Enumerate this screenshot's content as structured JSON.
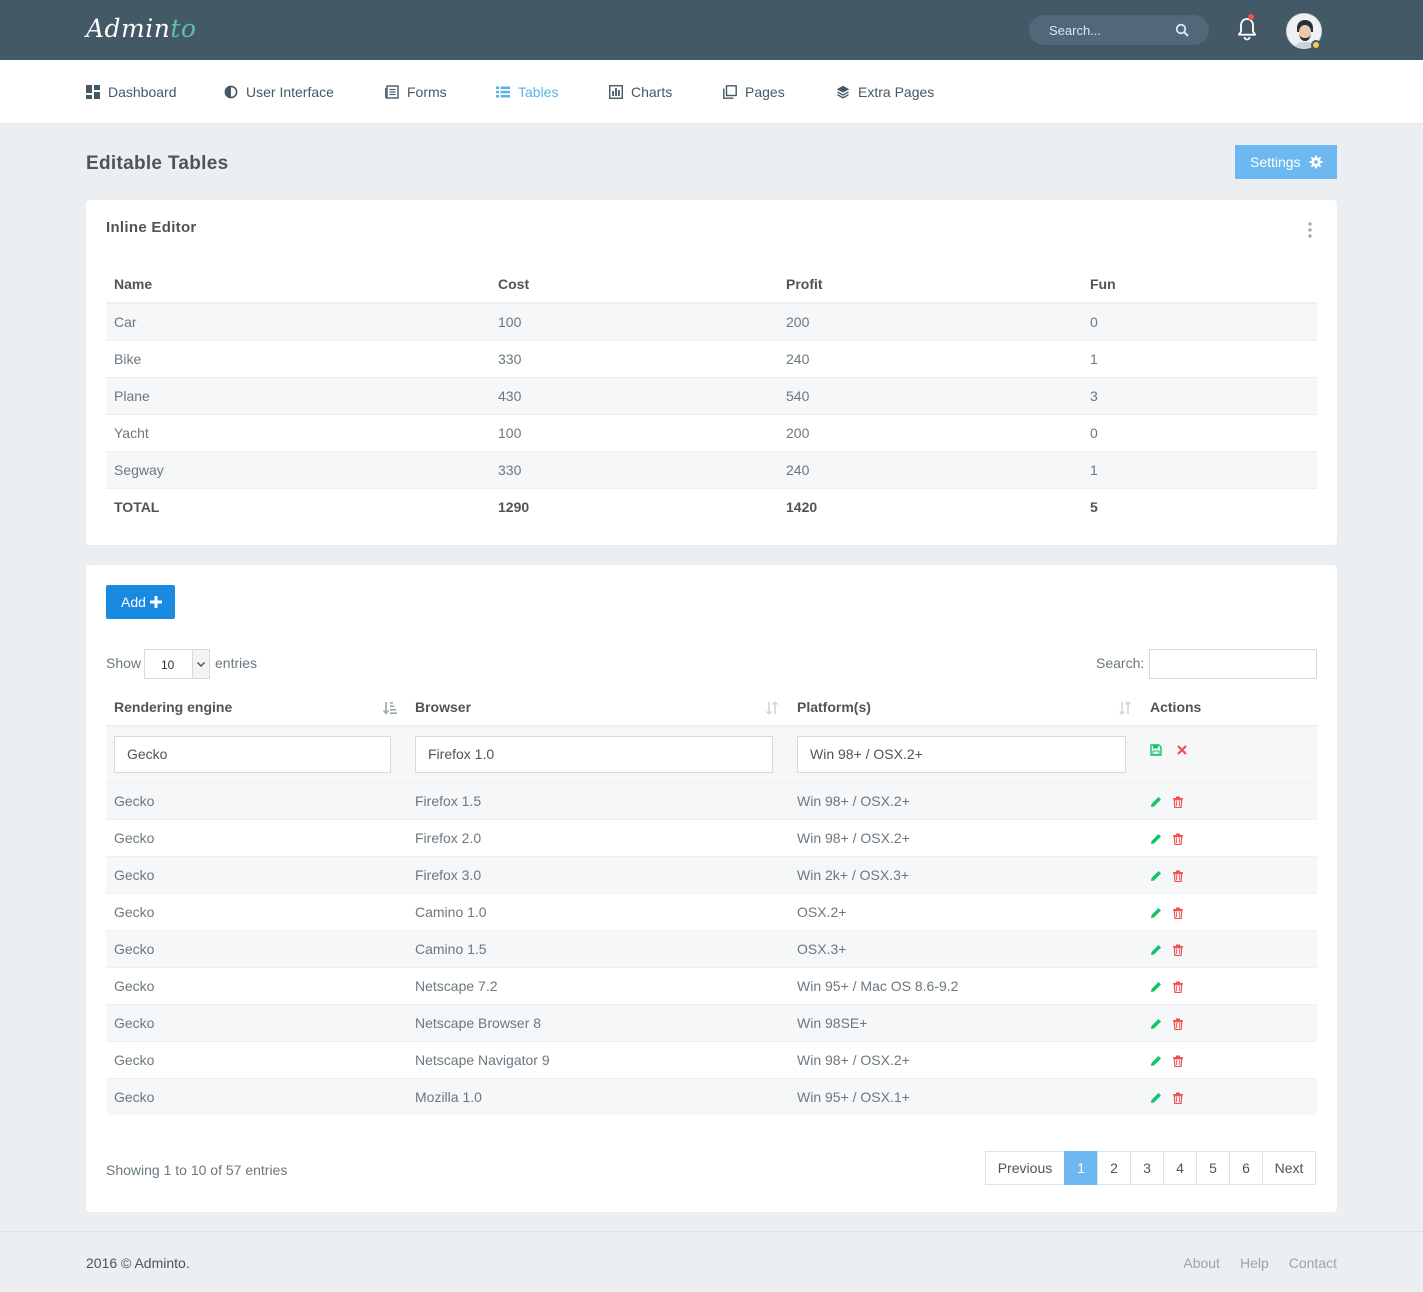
{
  "brand": {
    "name_main": "Admin",
    "name_accent": "to"
  },
  "topbar": {
    "search_placeholder": "Search..."
  },
  "nav": [
    {
      "label": "Dashboard",
      "icon": "dashboard-icon"
    },
    {
      "label": "User Interface",
      "icon": "contrast-icon"
    },
    {
      "label": "Forms",
      "icon": "forms-icon"
    },
    {
      "label": "Tables",
      "icon": "list-icon",
      "active": true
    },
    {
      "label": "Charts",
      "icon": "bar-chart-icon"
    },
    {
      "label": "Pages",
      "icon": "pages-icon"
    },
    {
      "label": "Extra Pages",
      "icon": "layers-icon"
    }
  ],
  "page": {
    "title": "Editable Tables",
    "settings_label": "Settings"
  },
  "inline_editor": {
    "title": "Inline Editor",
    "headers": [
      "Name",
      "Cost",
      "Profit",
      "Fun"
    ],
    "rows": [
      [
        "Car",
        "100",
        "200",
        "0"
      ],
      [
        "Bike",
        "330",
        "240",
        "1"
      ],
      [
        "Plane",
        "430",
        "540",
        "3"
      ],
      [
        "Yacht",
        "100",
        "200",
        "0"
      ],
      [
        "Segway",
        "330",
        "240",
        "1"
      ]
    ],
    "total": [
      "TOTAL",
      "1290",
      "1420",
      "5"
    ]
  },
  "datatable": {
    "add_label": "Add",
    "show_label": "Show",
    "entries_value": "10",
    "entries_label": "entries",
    "search_label": "Search:",
    "headers": [
      "Rendering engine",
      "Browser",
      "Platform(s)",
      "Actions"
    ],
    "edit_row": [
      "Gecko",
      "Firefox 1.0",
      "Win 98+ / OSX.2+"
    ],
    "rows": [
      [
        "Gecko",
        "Firefox 1.5",
        "Win 98+ / OSX.2+"
      ],
      [
        "Gecko",
        "Firefox 2.0",
        "Win 98+ / OSX.2+"
      ],
      [
        "Gecko",
        "Firefox 3.0",
        "Win 2k+ / OSX.3+"
      ],
      [
        "Gecko",
        "Camino 1.0",
        "OSX.2+"
      ],
      [
        "Gecko",
        "Camino 1.5",
        "OSX.3+"
      ],
      [
        "Gecko",
        "Netscape 7.2",
        "Win 95+ / Mac OS 8.6-9.2"
      ],
      [
        "Gecko",
        "Netscape Browser 8",
        "Win 98SE+"
      ],
      [
        "Gecko",
        "Netscape Navigator 9",
        "Win 98+ / OSX.2+"
      ],
      [
        "Gecko",
        "Mozilla 1.0",
        "Win 95+ / OSX.1+"
      ]
    ],
    "showing_text": "Showing 1 to 10 of 57 entries",
    "pagination": [
      "Previous",
      "1",
      "2",
      "3",
      "4",
      "5",
      "6",
      "Next"
    ],
    "active_page": "1"
  },
  "footer": {
    "copyright": "2016 © Adminto.",
    "links": [
      "About",
      "Help",
      "Contact"
    ]
  },
  "colors": {
    "topbar": "#435966",
    "accent": "#5fbeaa",
    "primary": "#188ae2",
    "info": "#6db8f0",
    "success": "#10c469",
    "danger": "#f05050"
  }
}
